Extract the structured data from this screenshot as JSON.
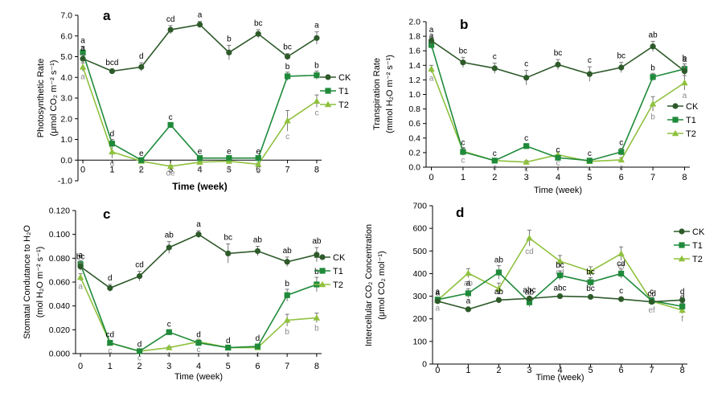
{
  "colors": {
    "CK": "#2e5a2a",
    "T1": "#1f8a3a",
    "T2": "#8fc13e",
    "axis": "#000000",
    "letter_T2": "#8a8a8a",
    "letter_CK": "#000000"
  },
  "chart_data": [
    {
      "type": "line",
      "panel_label": "a",
      "xlabel": "Time (week)",
      "ylabel_lines": [
        "Photosynthetic Rate",
        "(μmol CO₂ m⁻² s⁻¹)"
      ],
      "x": [
        0,
        1,
        2,
        3,
        4,
        5,
        6,
        7,
        8
      ],
      "xlim": [
        0,
        8
      ],
      "ylim": [
        -1.0,
        7.0
      ],
      "yticks": [
        -1.0,
        0.0,
        1.0,
        2.0,
        3.0,
        4.0,
        5.0,
        6.0,
        7.0
      ],
      "ytick_labels": [
        "-1.0",
        "0.0",
        "1.0",
        "2.0",
        "3.0",
        "4.0",
        "5.0",
        "6.0",
        "7.0"
      ],
      "xtick_labels": [
        "0",
        "1",
        "2",
        "3",
        "4",
        "5",
        "6",
        "7",
        "8"
      ],
      "legend": "right",
      "series": [
        {
          "name": "CK",
          "values": [
            4.9,
            4.3,
            4.5,
            6.3,
            6.55,
            5.2,
            6.1,
            5.0,
            5.9
          ],
          "err": [
            0.2,
            0.1,
            0.2,
            0.2,
            0.15,
            0.35,
            0.2,
            0.15,
            0.3
          ],
          "letters": [
            "a",
            "bcd",
            "d",
            "cd",
            "a",
            "b",
            "bc",
            "bc",
            "a"
          ]
        },
        {
          "name": "T1",
          "values": [
            5.2,
            0.8,
            0.0,
            1.7,
            0.1,
            0.1,
            0.1,
            4.05,
            4.1
          ],
          "err": [
            0.3,
            0.2,
            0.05,
            0.1,
            0.05,
            0.05,
            0.05,
            0.2,
            0.2
          ],
          "letters": [
            "a",
            "d",
            "e",
            "c",
            "e",
            "e",
            "e",
            "b",
            "b"
          ]
        },
        {
          "name": "T2",
          "values": [
            4.5,
            0.4,
            -0.05,
            -0.3,
            -0.1,
            -0.05,
            -0.2,
            1.9,
            2.85
          ],
          "err": [
            0.2,
            0.3,
            0.05,
            0.05,
            0.05,
            0.05,
            0.05,
            0.5,
            0.3
          ],
          "letters": [
            "a",
            "d",
            "e",
            "de",
            "e",
            "e",
            "e",
            "c",
            "c"
          ]
        }
      ]
    },
    {
      "type": "line",
      "panel_label": "b",
      "xlabel": "Time (week)",
      "ylabel_lines": [
        "Transpiration Rate",
        "(mmol H₂O m⁻² s⁻¹)"
      ],
      "x": [
        0,
        1,
        2,
        3,
        4,
        5,
        6,
        7,
        8
      ],
      "xlim": [
        0,
        8
      ],
      "ylim": [
        0.0,
        2.0
      ],
      "yticks": [
        0.0,
        0.2,
        0.4,
        0.6,
        0.8,
        1.0,
        1.2,
        1.4,
        1.6,
        1.8,
        2.0
      ],
      "ytick_labels": [
        "0.0",
        "0.2",
        "0.4",
        "0.6",
        "0.8",
        "1.0",
        "1.2",
        "1.4",
        "1.6",
        "1.8",
        "2.0"
      ],
      "xtick_labels": [
        "0",
        "1",
        "2",
        "3",
        "4",
        "5",
        "6",
        "7",
        "8"
      ],
      "legend": "right",
      "series": [
        {
          "name": "CK",
          "values": [
            1.74,
            1.44,
            1.36,
            1.23,
            1.41,
            1.28,
            1.37,
            1.66,
            1.32
          ],
          "err": [
            0.06,
            0.07,
            0.07,
            0.1,
            0.07,
            0.1,
            0.07,
            0.07,
            0.07
          ],
          "letters": [
            "a",
            "bc",
            "c",
            "c",
            "bc",
            "c",
            "bc",
            "ab",
            "a"
          ]
        },
        {
          "name": "T1",
          "values": [
            1.68,
            0.21,
            0.09,
            0.29,
            0.13,
            0.09,
            0.21,
            1.24,
            1.35
          ],
          "err": [
            0.05,
            0.05,
            0.02,
            0.03,
            0.03,
            0.02,
            0.05,
            0.05,
            0.07
          ],
          "letters": [
            "a",
            "c",
            "c",
            "c",
            "c",
            "c",
            "c",
            "b",
            "b"
          ]
        },
        {
          "name": "T2",
          "values": [
            1.35,
            0.22,
            0.09,
            0.07,
            0.17,
            0.08,
            0.1,
            0.87,
            1.16
          ],
          "err": [
            0.05,
            0.05,
            0.02,
            0.02,
            0.04,
            0.02,
            0.03,
            0.1,
            0.1
          ],
          "letters": [
            "a",
            "c",
            "c",
            "c",
            "c",
            "c",
            "c",
            "b",
            "a"
          ]
        }
      ]
    },
    {
      "type": "line",
      "panel_label": "c",
      "xlabel": "Time (week)",
      "ylabel_lines": [
        "Stomatal Condutance to H₂O",
        "(mol H₂O m⁻² s⁻¹)"
      ],
      "x": [
        0,
        1,
        2,
        3,
        4,
        5,
        6,
        7,
        8
      ],
      "xlim": [
        0,
        8
      ],
      "ylim": [
        0.0,
        0.12
      ],
      "yticks": [
        0.0,
        0.02,
        0.04,
        0.06,
        0.08,
        0.1,
        0.12
      ],
      "ytick_labels": [
        "0.000",
        "0.020",
        "0.040",
        "0.060",
        "0.080",
        "0.100",
        "0.120"
      ],
      "xtick_labels": [
        "0",
        "1",
        "2",
        "3",
        "4",
        "5",
        "6",
        "7",
        "8"
      ],
      "legend": "right",
      "series": [
        {
          "name": "CK",
          "values": [
            0.073,
            0.055,
            0.065,
            0.089,
            0.1,
            0.084,
            0.086,
            0.077,
            0.083
          ],
          "err": [
            0.003,
            0.003,
            0.004,
            0.005,
            0.003,
            0.008,
            0.004,
            0.004,
            0.006
          ],
          "letters": [
            "bc",
            "d",
            "cd",
            "ab",
            "a",
            "bc",
            "ab",
            "ab",
            "ab"
          ]
        },
        {
          "name": "T1",
          "values": [
            0.075,
            0.009,
            0.002,
            0.018,
            0.009,
            0.005,
            0.006,
            0.049,
            0.058
          ],
          "err": [
            0.003,
            0.002,
            0.001,
            0.002,
            0.002,
            0.001,
            0.002,
            0.005,
            0.006
          ],
          "letters": [
            "a",
            "cd",
            "d",
            "c",
            "d",
            "d",
            "d",
            "b",
            "b"
          ]
        },
        {
          "name": "T2",
          "values": [
            0.064,
            0.009,
            0.002,
            0.005,
            0.01,
            0.005,
            0.005,
            0.028,
            0.03
          ],
          "err": [
            0.003,
            0.002,
            0.001,
            0.001,
            0.002,
            0.001,
            0.001,
            0.005,
            0.004
          ],
          "letters": [
            "a",
            "c",
            "c",
            "c",
            "c",
            "c",
            "c",
            "b",
            "b"
          ]
        }
      ]
    },
    {
      "type": "line",
      "panel_label": "d",
      "xlabel": "Time (week)",
      "ylabel_lines": [
        "Intercellular CO₂ Concentration",
        "(μmol CO₂ mol⁻¹)"
      ],
      "x": [
        0,
        1,
        2,
        3,
        4,
        5,
        6,
        7,
        8
      ],
      "xlim": [
        0,
        8
      ],
      "ylim": [
        0,
        700
      ],
      "yticks": [
        0,
        100,
        200,
        300,
        400,
        500,
        600,
        700
      ],
      "ytick_labels": [
        "0",
        "100",
        "200",
        "300",
        "400",
        "500",
        "600",
        "700"
      ],
      "xtick_labels": [
        "0",
        "1",
        "2",
        "3",
        "4",
        "5",
        "6",
        "7",
        "8"
      ],
      "legend": "right",
      "series": [
        {
          "name": "CK",
          "values": [
            278,
            242,
            283,
            290,
            300,
            297,
            287,
            275,
            283
          ],
          "err": [
            8,
            8,
            8,
            8,
            8,
            8,
            8,
            8,
            8
          ],
          "letters": [
            "a",
            "a",
            "ab",
            "abc",
            "abc",
            "bc",
            "c",
            "cd",
            "d"
          ]
        },
        {
          "name": "T1",
          "values": [
            285,
            313,
            405,
            273,
            392,
            362,
            400,
            280,
            255
          ],
          "err": [
            10,
            20,
            30,
            20,
            20,
            20,
            20,
            15,
            15
          ],
          "letters": [
            "a",
            "a",
            "ab",
            "ab",
            "bc",
            "bc",
            "cd",
            "c",
            "d"
          ]
        },
        {
          "name": "T2",
          "values": [
            282,
            402,
            333,
            557,
            455,
            410,
            488,
            278,
            238
          ],
          "err": [
            10,
            20,
            25,
            35,
            25,
            20,
            30,
            15,
            15
          ],
          "letters": [
            "a",
            "ab",
            "b",
            "cd",
            "cd",
            "de",
            "ef",
            "ef",
            "f"
          ]
        }
      ]
    }
  ]
}
